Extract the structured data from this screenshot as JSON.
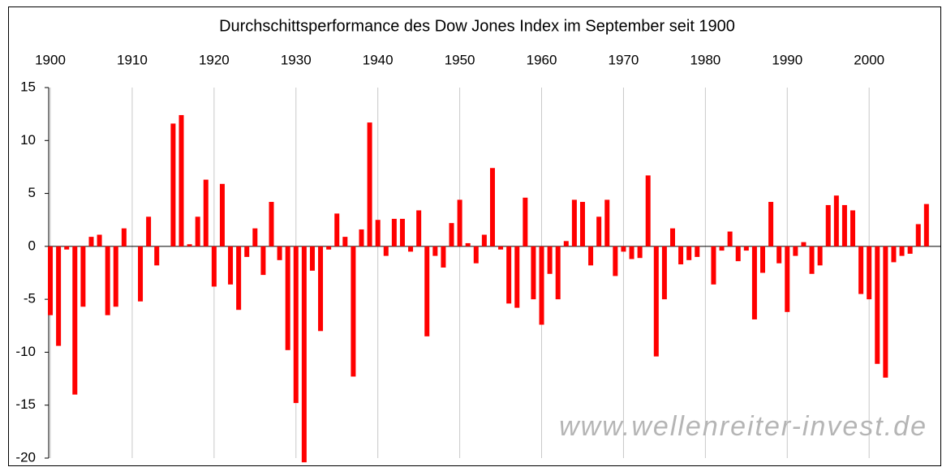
{
  "chart_data": {
    "type": "bar",
    "title": "Durchschittsperformance des Dow Jones Index im September seit 1900",
    "annotation": "www.wellenreiter-invest.de",
    "color": "#ff0000",
    "x": [
      1900,
      1901,
      1902,
      1903,
      1904,
      1905,
      1906,
      1907,
      1908,
      1909,
      1910,
      1911,
      1912,
      1913,
      1914,
      1915,
      1916,
      1917,
      1918,
      1919,
      1920,
      1921,
      1922,
      1923,
      1924,
      1925,
      1926,
      1927,
      1928,
      1929,
      1930,
      1931,
      1932,
      1933,
      1934,
      1935,
      1936,
      1937,
      1938,
      1939,
      1940,
      1941,
      1942,
      1943,
      1944,
      1945,
      1946,
      1947,
      1948,
      1949,
      1950,
      1951,
      1952,
      1953,
      1954,
      1955,
      1956,
      1957,
      1958,
      1959,
      1960,
      1961,
      1962,
      1963,
      1964,
      1965,
      1966,
      1967,
      1968,
      1969,
      1970,
      1971,
      1972,
      1973,
      1974,
      1975,
      1976,
      1977,
      1978,
      1979,
      1980,
      1981,
      1982,
      1983,
      1984,
      1985,
      1986,
      1987,
      1988,
      1989,
      1990,
      1991,
      1992,
      1993,
      1994,
      1995,
      1996,
      1997,
      1998,
      1999,
      2000,
      2001,
      2002,
      2003,
      2004,
      2005,
      2006,
      2007
    ],
    "values": [
      -6.5,
      -9.4,
      -0.3,
      -14,
      -5.7,
      0.9,
      1.1,
      -6.5,
      -5.7,
      1.7,
      0,
      -5.2,
      2.8,
      -1.8,
      null,
      11.6,
      12.4,
      0.2,
      2.8,
      6.3,
      -3.8,
      5.9,
      -3.6,
      -6,
      -1,
      1.7,
      -2.7,
      4.2,
      -1.3,
      -9.8,
      -14.8,
      -20.4,
      -2.3,
      -8,
      -0.3,
      3.1,
      0.9,
      -12.3,
      1.6,
      11.7,
      2.5,
      -0.9,
      2.6,
      2.6,
      -0.5,
      3.4,
      -8.5,
      -0.9,
      -2,
      2.2,
      4.4,
      0.3,
      -1.6,
      1.1,
      7.4,
      -0.3,
      -5.4,
      -5.8,
      4.6,
      -5,
      -7.4,
      -2.6,
      -5,
      0.5,
      4.4,
      4.2,
      -1.8,
      2.8,
      4.4,
      -2.8,
      -0.5,
      -1.2,
      -1.1,
      6.7,
      -10.4,
      -5,
      1.7,
      -1.7,
      -1.3,
      -1,
      0,
      -3.6,
      -0.4,
      1.4,
      -1.4,
      -0.4,
      -6.9,
      -2.5,
      4.2,
      -1.6,
      -6.2,
      -0.9,
      0.4,
      -2.6,
      -1.8,
      3.9,
      4.8,
      3.9,
      3.4,
      -4.5,
      -5,
      -11.1,
      -12.4,
      -1.5,
      -0.9,
      -0.7,
      2.1,
      4
    ],
    "xlim": [
      1899.8,
      2008.7
    ],
    "xticks": [
      1900,
      1910,
      1920,
      1930,
      1940,
      1950,
      1960,
      1970,
      1980,
      1990,
      2000
    ],
    "ylim": [
      -20,
      15
    ],
    "yticks": [
      -20,
      -15,
      -10,
      -5,
      0,
      5,
      10,
      15
    ],
    "grid": "x"
  }
}
